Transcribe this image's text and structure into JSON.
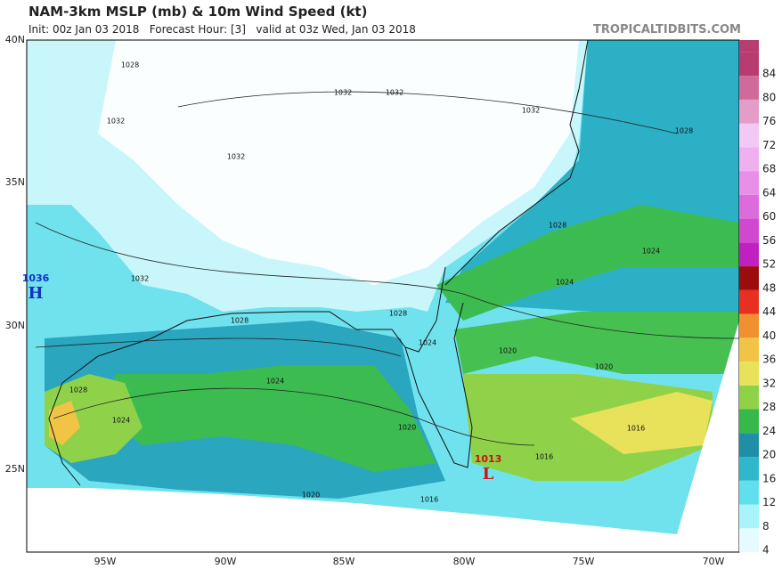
{
  "header": {
    "title": "NAM-3km MSLP (mb) & 10m Wind Speed (kt)",
    "subtitle": "Init: 00z Jan 03 2018   Forecast Hour: [3]   valid at 03z Wed, Jan 03 2018",
    "watermark": "TROPICALTIDBITS.COM"
  },
  "lat_labels": [
    "40N",
    "35N",
    "30N",
    "25N"
  ],
  "lon_labels": [
    "95W",
    "90W",
    "85W",
    "80W",
    "75W",
    "70W"
  ],
  "colorbar": {
    "values": [
      4,
      8,
      12,
      16,
      20,
      24,
      28,
      32,
      36,
      40,
      44,
      48,
      52,
      56,
      60,
      64,
      68,
      72,
      76,
      80,
      84
    ],
    "colors": [
      "#e6fbff",
      "#a8f4fa",
      "#5fe0ec",
      "#2fb8cc",
      "#1e8fa6",
      "#36b84a",
      "#8fd24a",
      "#e8e25a",
      "#f2c446",
      "#f0902e",
      "#e83020",
      "#9c0c0c",
      "#c020c0",
      "#d048d0",
      "#dc6cdc",
      "#e890e8",
      "#f0b0f0",
      "#f4c8f4",
      "#e49cc8",
      "#d06a98",
      "#b83c70"
    ]
  },
  "isobars": [
    1028,
    1032,
    1032,
    1032,
    1028,
    1032,
    1032,
    1032,
    1028,
    1028,
    1028,
    1024,
    1024,
    1024,
    1020,
    1020,
    1024,
    1028,
    1024,
    1020,
    1016,
    1016,
    1020,
    1016
  ],
  "high": {
    "pressure": 1036,
    "symbol": "H"
  },
  "low": {
    "pressure": 1013,
    "symbol": "L"
  }
}
